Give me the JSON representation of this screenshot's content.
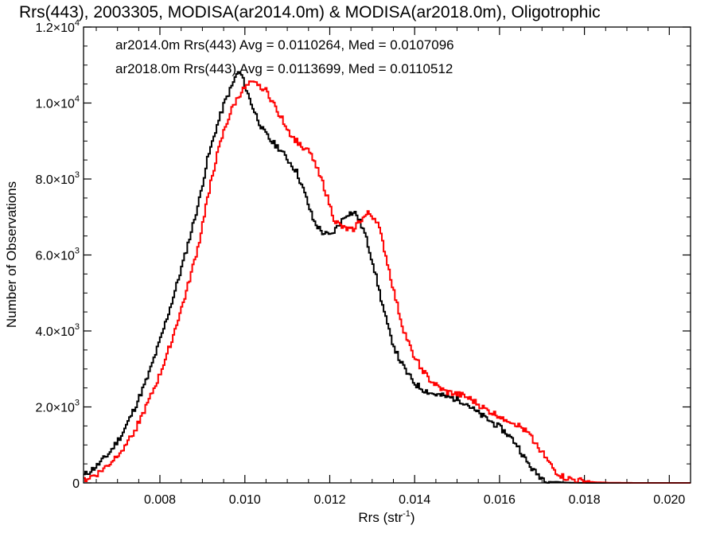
{
  "chart_data": {
    "type": "line",
    "title": "Rrs(443), 2003305, MODISA(ar2014.0m) & MODISA(ar2018.0m), Oligotrophic",
    "xlabel": "Rrs (str",
    "xlabel_sup": "-1",
    "xlabel_close": ")",
    "ylabel": "Number of Observations",
    "xlim": [
      0.0062,
      0.0205
    ],
    "ylim": [
      0,
      12000
    ],
    "x_ticks": [
      0.008,
      0.01,
      0.012,
      0.014,
      0.016,
      0.018,
      0.02
    ],
    "x_tick_labels": [
      "0.008",
      "0.010",
      "0.012",
      "0.014",
      "0.016",
      "0.018",
      "0.020"
    ],
    "y_ticks": [
      0,
      2000,
      4000,
      6000,
      8000,
      10000,
      12000
    ],
    "y_tick_labels": [
      {
        "value": 0,
        "mant": "0",
        "exp": ""
      },
      {
        "value": 2000,
        "mant": "2.0×10",
        "exp": "3"
      },
      {
        "value": 4000,
        "mant": "4.0×10",
        "exp": "3"
      },
      {
        "value": 6000,
        "mant": "6.0×10",
        "exp": "3"
      },
      {
        "value": 8000,
        "mant": "8.0×10",
        "exp": "3"
      },
      {
        "value": 10000,
        "mant": "1.0×10",
        "exp": "4"
      },
      {
        "value": 12000,
        "mant": "1.2×10",
        "exp": "4"
      }
    ],
    "grid": false,
    "legend_position": "top-left",
    "step_style": "histogram",
    "series": [
      {
        "name": "ar2014.0m Rrs(443) Avg = 0.0110264, Med = 0.0107096",
        "color": "#000000",
        "points": [
          [
            0.0062,
            200
          ],
          [
            0.0065,
            450
          ],
          [
            0.0068,
            800
          ],
          [
            0.0071,
            1300
          ],
          [
            0.0074,
            2000
          ],
          [
            0.0077,
            2800
          ],
          [
            0.008,
            3800
          ],
          [
            0.0083,
            4900
          ],
          [
            0.0086,
            6100
          ],
          [
            0.0089,
            7400
          ],
          [
            0.0091,
            8500
          ],
          [
            0.0093,
            9300
          ],
          [
            0.0095,
            10000
          ],
          [
            0.0097,
            10500
          ],
          [
            0.0098,
            10800
          ],
          [
            0.0099,
            10750
          ],
          [
            0.01,
            10400
          ],
          [
            0.0102,
            9800
          ],
          [
            0.0104,
            9300
          ],
          [
            0.0106,
            9000
          ],
          [
            0.0108,
            8800
          ],
          [
            0.011,
            8500
          ],
          [
            0.0112,
            8200
          ],
          [
            0.0114,
            7600
          ],
          [
            0.0116,
            6900
          ],
          [
            0.0118,
            6600
          ],
          [
            0.012,
            6500
          ],
          [
            0.0122,
            6800
          ],
          [
            0.0124,
            7100
          ],
          [
            0.0126,
            7100
          ],
          [
            0.0128,
            6600
          ],
          [
            0.013,
            5800
          ],
          [
            0.0132,
            4800
          ],
          [
            0.0134,
            3900
          ],
          [
            0.0136,
            3300
          ],
          [
            0.0138,
            2900
          ],
          [
            0.014,
            2600
          ],
          [
            0.0142,
            2450
          ],
          [
            0.0144,
            2350
          ],
          [
            0.0146,
            2300
          ],
          [
            0.0148,
            2250
          ],
          [
            0.015,
            2200
          ],
          [
            0.0152,
            2100
          ],
          [
            0.0154,
            1900
          ],
          [
            0.0156,
            1750
          ],
          [
            0.0158,
            1600
          ],
          [
            0.016,
            1450
          ],
          [
            0.0162,
            1250
          ],
          [
            0.0164,
            1000
          ],
          [
            0.0166,
            600
          ],
          [
            0.0168,
            300
          ],
          [
            0.017,
            120
          ],
          [
            0.0172,
            40
          ],
          [
            0.0175,
            10
          ],
          [
            0.018,
            0
          ],
          [
            0.0205,
            0
          ]
        ]
      },
      {
        "name": "ar2018.0m Rrs(443) Avg = 0.0113699, Med = 0.0110512",
        "color": "#ff0000",
        "points": [
          [
            0.0062,
            80
          ],
          [
            0.0065,
            230
          ],
          [
            0.0068,
            500
          ],
          [
            0.0071,
            900
          ],
          [
            0.0074,
            1400
          ],
          [
            0.0077,
            2100
          ],
          [
            0.008,
            2900
          ],
          [
            0.0083,
            3900
          ],
          [
            0.0086,
            5000
          ],
          [
            0.0089,
            6300
          ],
          [
            0.0091,
            7500
          ],
          [
            0.0093,
            8500
          ],
          [
            0.0095,
            9300
          ],
          [
            0.0097,
            9900
          ],
          [
            0.0099,
            10300
          ],
          [
            0.0101,
            10500
          ],
          [
            0.0103,
            10500
          ],
          [
            0.0105,
            10300
          ],
          [
            0.0107,
            9900
          ],
          [
            0.0109,
            9500
          ],
          [
            0.0111,
            9100
          ],
          [
            0.0113,
            8900
          ],
          [
            0.0115,
            8700
          ],
          [
            0.0117,
            8300
          ],
          [
            0.0119,
            7600
          ],
          [
            0.0121,
            6900
          ],
          [
            0.0123,
            6700
          ],
          [
            0.0125,
            6650
          ],
          [
            0.0127,
            6900
          ],
          [
            0.0129,
            7100
          ],
          [
            0.0131,
            6900
          ],
          [
            0.0133,
            6000
          ],
          [
            0.0135,
            5000
          ],
          [
            0.0137,
            4100
          ],
          [
            0.0139,
            3500
          ],
          [
            0.0141,
            3100
          ],
          [
            0.0143,
            2750
          ],
          [
            0.0145,
            2550
          ],
          [
            0.0147,
            2400
          ],
          [
            0.0149,
            2350
          ],
          [
            0.0151,
            2300
          ],
          [
            0.0153,
            2200
          ],
          [
            0.0155,
            2050
          ],
          [
            0.0157,
            1900
          ],
          [
            0.0159,
            1800
          ],
          [
            0.0161,
            1700
          ],
          [
            0.0163,
            1600
          ],
          [
            0.0165,
            1450
          ],
          [
            0.0167,
            1250
          ],
          [
            0.0169,
            950
          ],
          [
            0.0171,
            600
          ],
          [
            0.0173,
            300
          ],
          [
            0.0175,
            140
          ],
          [
            0.0178,
            60
          ],
          [
            0.0182,
            20
          ],
          [
            0.0186,
            5
          ],
          [
            0.0192,
            0
          ],
          [
            0.0205,
            0
          ]
        ]
      }
    ]
  }
}
